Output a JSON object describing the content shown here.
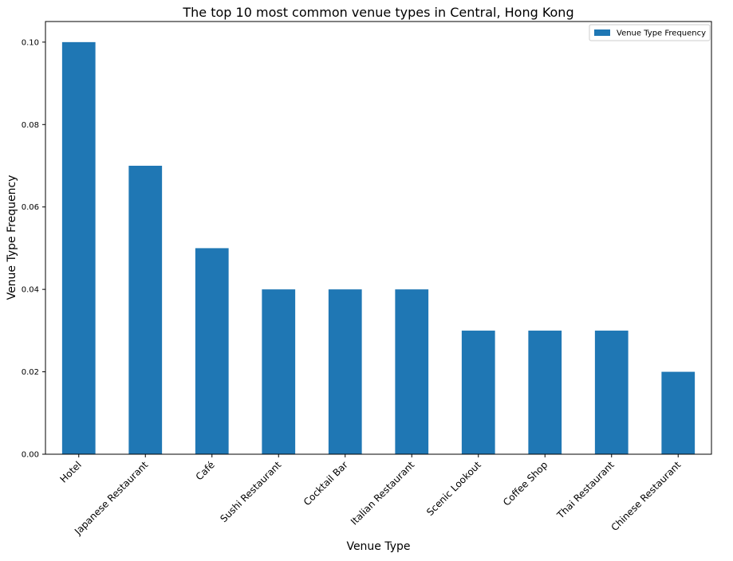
{
  "chart_data": {
    "type": "bar",
    "title": "The top 10 most common venue types in Central, Hong Kong",
    "xlabel": "Venue Type",
    "ylabel": "Venue Type Frequency",
    "categories": [
      "Hotel",
      "Japanese Restaurant",
      "Café",
      "Sushi Restaurant",
      "Cocktail Bar",
      "Italian Restaurant",
      "Scenic Lookout",
      "Coffee Shop",
      "Thai Restaurant",
      "Chinese Restaurant"
    ],
    "series": [
      {
        "name": "Venue Type Frequency",
        "values": [
          0.1,
          0.07,
          0.05,
          0.04,
          0.04,
          0.04,
          0.03,
          0.03,
          0.03,
          0.02
        ],
        "color": "#1f77b4"
      }
    ],
    "ylim": [
      0,
      0.105
    ],
    "yticks": [
      "0.00",
      "0.02",
      "0.04",
      "0.06",
      "0.08",
      "0.10"
    ],
    "grid": false,
    "legend_position": "top-right"
  }
}
